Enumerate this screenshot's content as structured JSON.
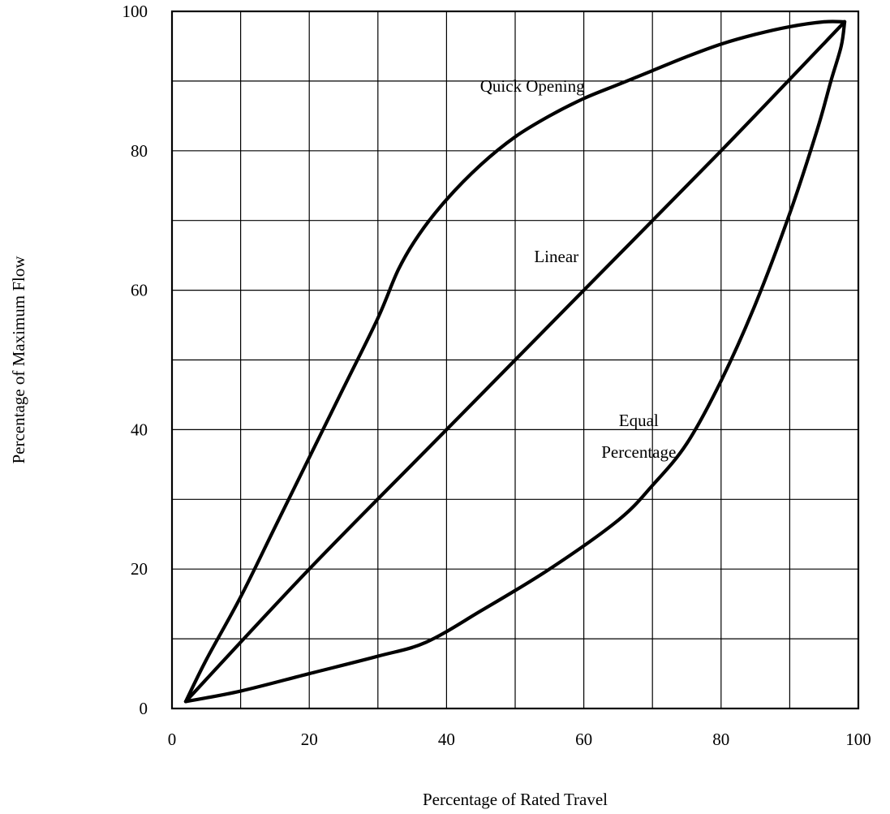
{
  "chart_data": {
    "type": "line",
    "title": "",
    "xlabel": "Percentage of Rated Travel",
    "ylabel": "Percentage of Maximum Flow",
    "xlim": [
      0,
      100
    ],
    "ylim": [
      0,
      100
    ],
    "x_ticks": [
      "0",
      "20",
      "40",
      "60",
      "80",
      "100"
    ],
    "y_ticks": [
      "0",
      "20",
      "40",
      "60",
      "80",
      "100"
    ],
    "grid": true,
    "legend": "none",
    "series": [
      {
        "label": "Quick Opening",
        "x": [
          2,
          5,
          10,
          15,
          20,
          25,
          30,
          33,
          36,
          40,
          45,
          50,
          55,
          60,
          65,
          70,
          75,
          80,
          85,
          90,
          95,
          98
        ],
        "y": [
          1,
          7,
          16,
          26,
          36,
          46,
          56,
          63,
          68,
          73,
          78,
          82,
          85,
          87.5,
          89.5,
          91.5,
          93.5,
          95.3,
          96.7,
          97.8,
          98.5,
          98.5
        ]
      },
      {
        "label": "Linear",
        "x": [
          2,
          20,
          40,
          60,
          80,
          98
        ],
        "y": [
          1,
          20,
          40,
          60,
          80,
          98.5
        ]
      },
      {
        "label": "Equal Percentage",
        "x": [
          2,
          10,
          20,
          30,
          37,
          45,
          55,
          65,
          70,
          75,
          80,
          85,
          90,
          94,
          96,
          97.5,
          98
        ],
        "y": [
          1,
          2.5,
          5,
          7.5,
          9.5,
          14,
          20,
          27,
          32,
          38,
          47,
          58,
          71,
          83,
          90,
          95,
          98.5
        ]
      }
    ],
    "annotations": [
      {
        "id": "label-quick",
        "text": "Quick Opening",
        "x": 52.5,
        "y": 88.5
      },
      {
        "id": "label-linear",
        "text": "Linear",
        "x": 56,
        "y": 64
      },
      {
        "id": "label-equal-1",
        "text": "Equal",
        "x": 68,
        "y": 40.5
      },
      {
        "id": "label-equal-2",
        "text": "Percentage",
        "x": 68,
        "y": 36
      }
    ]
  }
}
